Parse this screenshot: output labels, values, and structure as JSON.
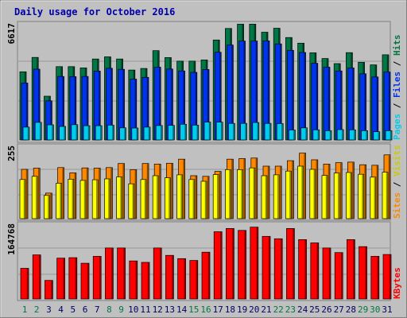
{
  "chart_data": [
    {
      "type": "bar",
      "title": "Daily usage for October 2016",
      "categories": [
        "1",
        "2",
        "3",
        "4",
        "5",
        "6",
        "7",
        "8",
        "9",
        "10",
        "11",
        "12",
        "13",
        "14",
        "15",
        "16",
        "17",
        "18",
        "19",
        "20",
        "21",
        "22",
        "23",
        "24",
        "25",
        "26",
        "27",
        "28",
        "29",
        "30",
        "31"
      ],
      "weekend_days": [
        "1",
        "2",
        "8",
        "9",
        "15",
        "16",
        "22",
        "23",
        "29",
        "30"
      ],
      "ymax_label": "6617",
      "ylim": [
        0,
        6617
      ],
      "series": [
        {
          "name": "Hits",
          "color": "#007744",
          "values": [
            3830,
            4640,
            2460,
            4120,
            4120,
            4050,
            4550,
            4670,
            4550,
            3930,
            4020,
            5020,
            4630,
            4430,
            4430,
            4500,
            5620,
            6270,
            6510,
            6510,
            6060,
            6280,
            5760,
            5440,
            4900,
            4580,
            4290,
            4910,
            4370,
            4220,
            4790
          ]
        },
        {
          "name": "Files",
          "color": "#0033ee",
          "values": [
            3200,
            3980,
            2200,
            3570,
            3560,
            3570,
            3870,
            4030,
            3970,
            3420,
            3520,
            4090,
            3990,
            3880,
            3800,
            3960,
            4930,
            5340,
            5560,
            5560,
            5570,
            5400,
            5040,
            4920,
            4310,
            4090,
            3880,
            4050,
            3720,
            3540,
            3820
          ]
        },
        {
          "name": "Pages",
          "color": "#00ccee",
          "values": [
            720,
            990,
            850,
            760,
            860,
            800,
            800,
            830,
            680,
            670,
            720,
            810,
            820,
            880,
            830,
            1000,
            1000,
            930,
            930,
            980,
            930,
            920,
            560,
            680,
            570,
            520,
            580,
            570,
            520,
            460,
            520
          ]
        }
      ]
    },
    {
      "type": "bar",
      "ymax_label": "255",
      "ylim": [
        0,
        255
      ],
      "series": [
        {
          "name": "Visits",
          "color": "#ff8800",
          "values": [
            170,
            174,
            88,
            176,
            158,
            175,
            174,
            176,
            190,
            169,
            190,
            188,
            191,
            205,
            148,
            146,
            163,
            205,
            207,
            209,
            181,
            181,
            200,
            226,
            203,
            188,
            193,
            195,
            186,
            184,
            220
          ]
        },
        {
          "name": "Sites",
          "color": "#ffff00",
          "values": [
            135,
            146,
            80,
            122,
            136,
            132,
            134,
            137,
            144,
            120,
            135,
            148,
            141,
            151,
            135,
            129,
            152,
            169,
            169,
            175,
            148,
            151,
            164,
            181,
            170,
            149,
            157,
            159,
            153,
            143,
            160
          ]
        }
      ]
    },
    {
      "type": "bar",
      "ymax_label": "164768",
      "ylim": [
        0,
        164768
      ],
      "series": [
        {
          "name": "KBytes",
          "color": "#ff0000",
          "values": [
            66000,
            95000,
            40000,
            88000,
            89000,
            77000,
            92000,
            110000,
            110000,
            82000,
            79000,
            110000,
            94000,
            87000,
            83000,
            101000,
            145000,
            152000,
            148000,
            155000,
            135000,
            130000,
            152000,
            128000,
            121000,
            110000,
            100000,
            128000,
            113000,
            92000,
            96000
          ]
        }
      ]
    }
  ]
}
